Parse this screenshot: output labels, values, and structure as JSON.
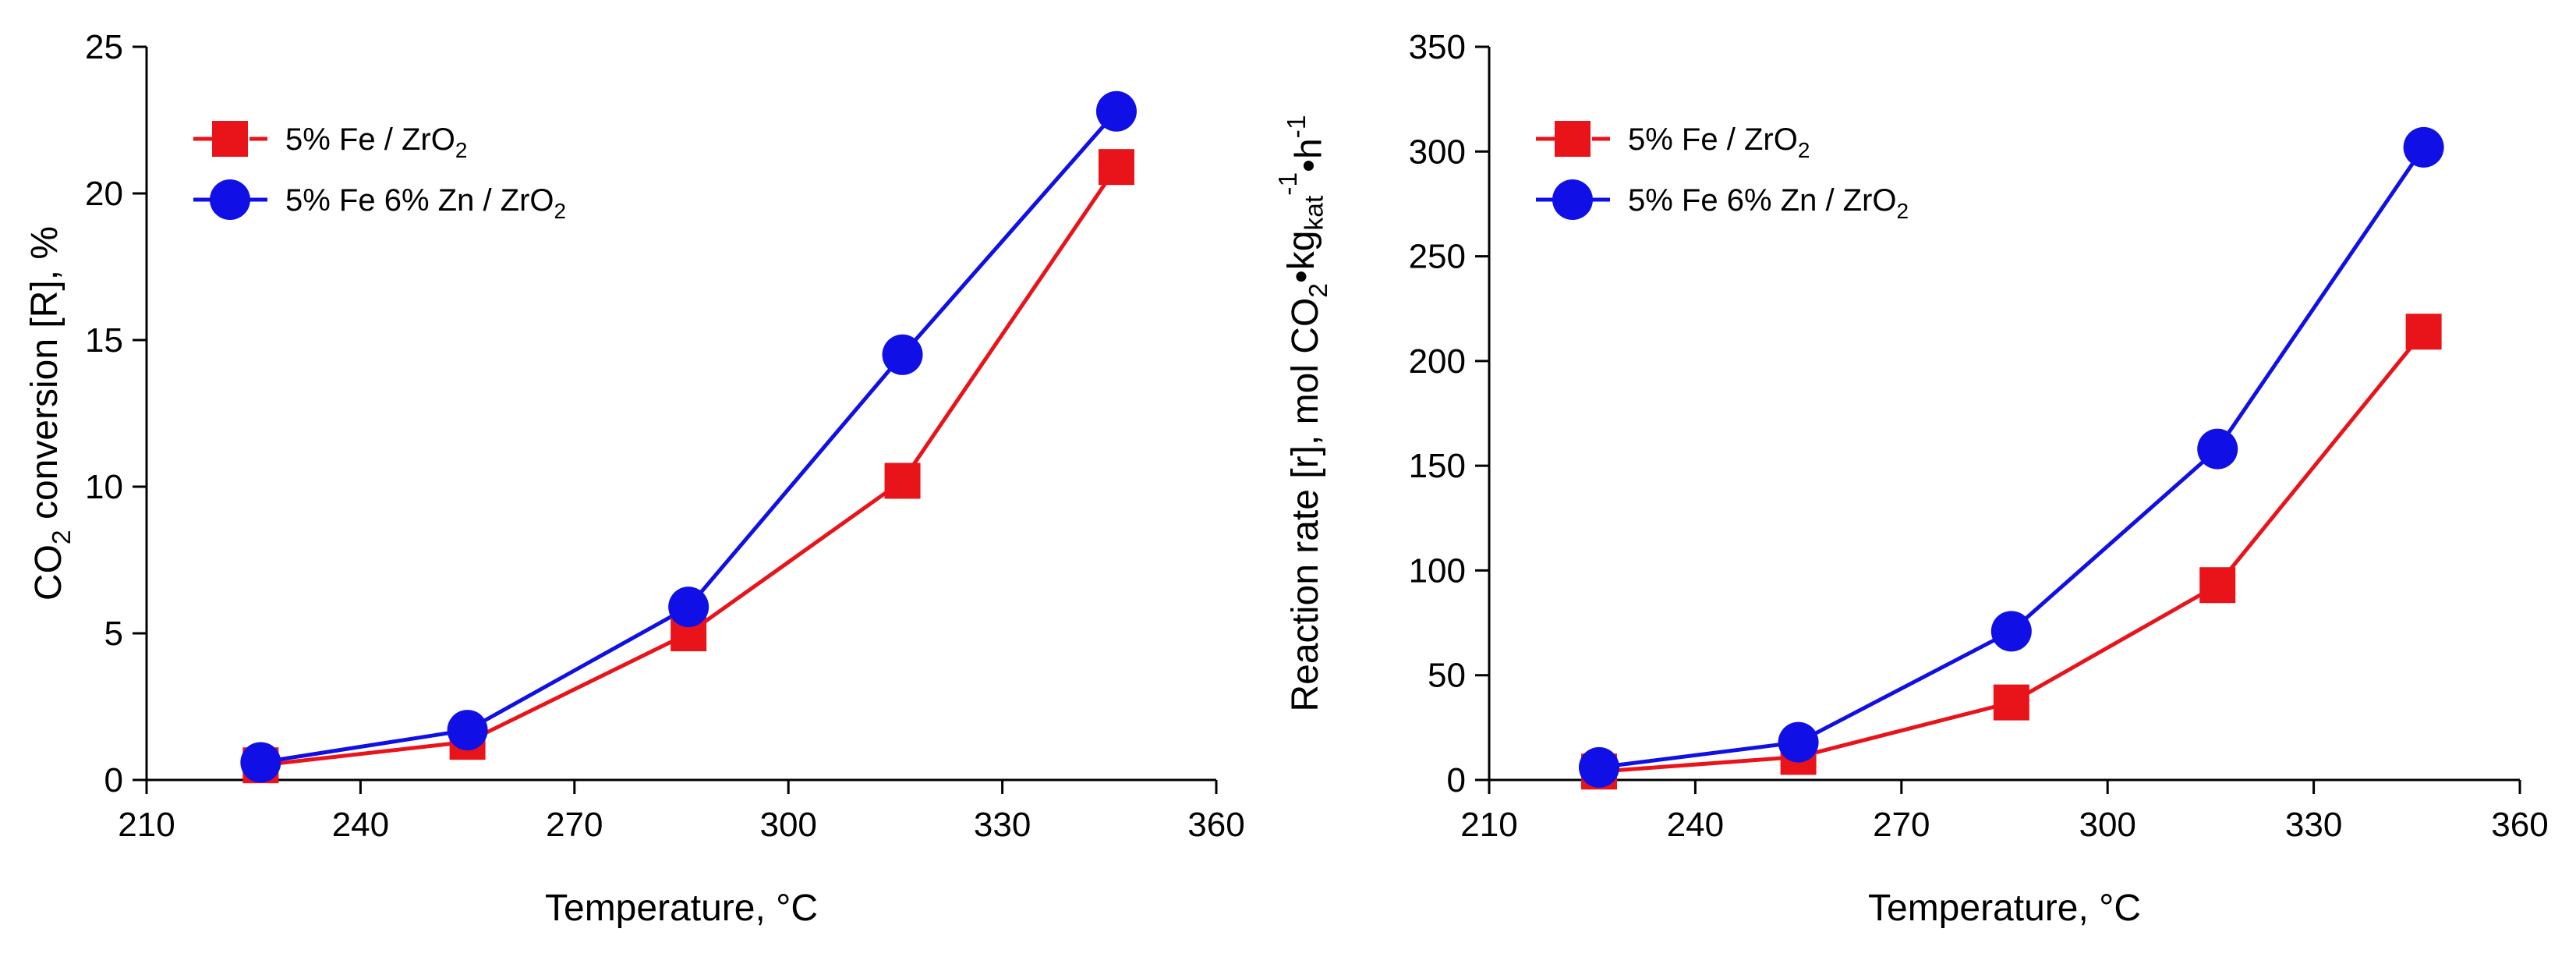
{
  "colors": {
    "series_fe": "#e8141a",
    "series_fezn": "#1010e6",
    "axis": "#000000"
  },
  "chart_data": [
    {
      "type": "line",
      "ylabel_parts": [
        "CO",
        "2",
        " conversion [R], %"
      ],
      "xlabel": "Temperature, °C",
      "xlim": [
        210,
        360
      ],
      "ylim": [
        0,
        25
      ],
      "xticks": [
        "210",
        "240",
        "270",
        "300",
        "330",
        "360"
      ],
      "yticks": [
        "0",
        "5",
        "10",
        "15",
        "20",
        "25"
      ],
      "legend_position": "top-left",
      "series": [
        {
          "name": "5% Fe / ZrO2",
          "label_parts": [
            "5% Fe / ZrO",
            "2"
          ],
          "marker": "square",
          "color": "#e8141a",
          "x": [
            226,
            255,
            286,
            316,
            346
          ],
          "y": [
            0.5,
            1.3,
            5.0,
            10.2,
            20.9
          ]
        },
        {
          "name": "5% Fe 6% Zn / ZrO2",
          "label_parts": [
            "5% Fe 6% Zn / ZrO",
            "2"
          ],
          "marker": "circle",
          "color": "#1010e6",
          "x": [
            226,
            255,
            286,
            316,
            346
          ],
          "y": [
            0.6,
            1.7,
            5.9,
            14.5,
            22.8
          ]
        }
      ]
    },
    {
      "type": "line",
      "ylabel_parts": [
        "Reaction rate [r], mol CO",
        "2",
        "•kg",
        "kat",
        "-1",
        "•h",
        "-1"
      ],
      "xlabel": "Temperature, °C",
      "xlim": [
        210,
        360
      ],
      "ylim": [
        0,
        350
      ],
      "xticks": [
        "210",
        "240",
        "270",
        "300",
        "330",
        "360"
      ],
      "yticks": [
        "0",
        "50",
        "100",
        "150",
        "200",
        "250",
        "300",
        "350"
      ],
      "legend_position": "top-left",
      "series": [
        {
          "name": "5% Fe / ZrO2",
          "label_parts": [
            "5% Fe / ZrO",
            "2"
          ],
          "marker": "square",
          "color": "#e8141a",
          "x": [
            226,
            255,
            286,
            316,
            346
          ],
          "y": [
            4,
            11,
            37,
            93,
            214
          ]
        },
        {
          "name": "5% Fe 6% Zn / ZrO2",
          "label_parts": [
            "5% Fe 6% Zn / ZrO",
            "2"
          ],
          "marker": "circle",
          "color": "#1010e6",
          "x": [
            226,
            255,
            286,
            316,
            346
          ],
          "y": [
            6,
            18,
            71,
            158,
            302
          ]
        }
      ]
    }
  ]
}
